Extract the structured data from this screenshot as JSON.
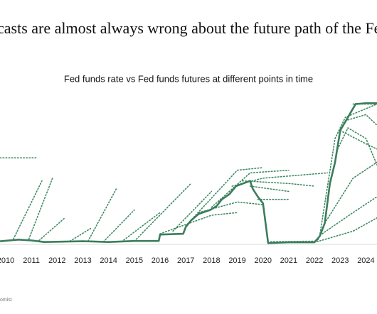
{
  "chart_data": {
    "type": "line",
    "title": "casts are almost always wrong about the future path of the Fed f",
    "subtitle": "Fed funds rate vs Fed funds futures at different points in time",
    "source": "omist",
    "xlim": [
      2009.78,
      2024.43
    ],
    "xticks": [
      2010,
      2011,
      2012,
      2013,
      2014,
      2015,
      2016,
      2017,
      2018,
      2019,
      2020,
      2021,
      2022,
      2023,
      2024
    ],
    "ylim": [
      0,
      5.5
    ],
    "series": [
      {
        "color": "#3b7d5d",
        "line_style": "solid",
        "x": [
          2009.8,
          2010.5,
          2011,
          2011.5,
          2012,
          2013,
          2014,
          2015,
          2015.95,
          2016,
          2016.9,
          2017,
          2017.2,
          2017.5,
          2017.95,
          2018.2,
          2018.4,
          2018.7,
          2018.95,
          2019.5,
          2019.6,
          2019.8,
          2020,
          2020.2,
          2021,
          2022,
          2022.2,
          2022.4,
          2022.6,
          2022.8,
          2023,
          2023.3,
          2023.6,
          2024,
          2024.43
        ],
        "values": [
          0.12,
          0.18,
          0.15,
          0.09,
          0.1,
          0.12,
          0.09,
          0.13,
          0.13,
          0.37,
          0.4,
          0.66,
          0.9,
          1.15,
          1.3,
          1.45,
          1.7,
          1.9,
          2.2,
          2.4,
          2.1,
          1.8,
          1.55,
          0.05,
          0.08,
          0.08,
          0.3,
          0.8,
          2.3,
          3.1,
          4.3,
          4.8,
          5.3,
          5.33,
          5.33
        ]
      },
      {
        "color": "#3f8a62",
        "line_style": "dotted",
        "x": [
          2009.78,
          2011.2
        ],
        "values": [
          3.27,
          3.27
        ]
      },
      {
        "color": "#3f8a62",
        "line_style": "dotted",
        "x": [
          2010.3,
          2011.41
        ],
        "values": [
          0.2,
          2.4
        ]
      },
      {
        "color": "#3f8a62",
        "line_style": "dotted",
        "x": [
          2010.9,
          2011.82
        ],
        "values": [
          0.2,
          2.5
        ]
      },
      {
        "color": "#3f8a62",
        "line_style": "dotted",
        "x": [
          2011.3,
          2012.3
        ],
        "values": [
          0.15,
          1.0
        ]
      },
      {
        "color": "#3f8a62",
        "line_style": "dotted",
        "x": [
          2012.5,
          2013.3
        ],
        "values": [
          0.12,
          0.6
        ]
      },
      {
        "color": "#3f8a62",
        "line_style": "dotted",
        "x": [
          2013.2,
          2014.3
        ],
        "values": [
          0.12,
          2.1
        ]
      },
      {
        "color": "#3f8a62",
        "line_style": "dotted",
        "x": [
          2013.8,
          2015.0
        ],
        "values": [
          0.1,
          1.3
        ]
      },
      {
        "color": "#3f8a62",
        "line_style": "dotted",
        "x": [
          2014.5,
          2016.0
        ],
        "values": [
          0.1,
          1.2
        ]
      },
      {
        "color": "#3f8a62",
        "line_style": "dotted",
        "x": [
          2015.0,
          2017.2
        ],
        "values": [
          0.12,
          2.3
        ]
      },
      {
        "color": "#3f8a62",
        "line_style": "dotted",
        "x": [
          2016.5,
          2018.0
        ],
        "values": [
          0.5,
          2.0
        ]
      },
      {
        "color": "#3f8a62",
        "line_style": "dotted",
        "x": [
          2017.0,
          2019.0,
          2020.0
        ],
        "values": [
          0.7,
          2.8,
          2.9
        ]
      },
      {
        "color": "#3f8a62",
        "line_style": "dotted",
        "x": [
          2018.0,
          2019.5,
          2021.0
        ],
        "values": [
          1.4,
          2.7,
          2.8
        ]
      },
      {
        "color": "#3f8a62",
        "line_style": "dotted",
        "x": [
          2018.8,
          2020.0,
          2022.5
        ],
        "values": [
          2.2,
          2.5,
          2.7
        ]
      },
      {
        "color": "#3f8a62",
        "line_style": "dotted",
        "x": [
          2019.2,
          2021.0,
          2022.0
        ],
        "values": [
          2.4,
          2.3,
          2.2
        ]
      },
      {
        "color": "#3f8a62",
        "line_style": "dotted",
        "x": [
          2019.5,
          2021.0
        ],
        "values": [
          2.2,
          2.0
        ]
      },
      {
        "color": "#3f8a62",
        "line_style": "dotted",
        "x": [
          2019.8,
          2021.0
        ],
        "values": [
          1.7,
          1.7
        ]
      },
      {
        "color": "#3f8a62",
        "line_style": "dotted",
        "x": [
          2017.5,
          2019.0,
          2020.0
        ],
        "values": [
          1.2,
          1.6,
          1.5
        ]
      },
      {
        "color": "#3f8a62",
        "line_style": "dotted",
        "x": [
          2016.0,
          2018.0,
          2019.0
        ],
        "values": [
          0.4,
          1.1,
          1.2
        ]
      },
      {
        "color": "#3f8a62",
        "line_style": "dotted",
        "x": [
          2020.3,
          2022.0,
          2022.2
        ],
        "values": [
          0.1,
          0.12,
          0.2
        ]
      },
      {
        "color": "#3f8a62",
        "line_style": "dotted",
        "x": [
          2022.2,
          2022.8,
          2023.2,
          2024.43
        ],
        "values": [
          0.3,
          4.0,
          4.8,
          5.3
        ]
      },
      {
        "color": "#3f8a62",
        "line_style": "dotted",
        "x": [
          2022.9,
          2023.3,
          2024.0,
          2024.43
        ],
        "values": [
          3.6,
          4.4,
          4.0,
          3.0
        ]
      },
      {
        "color": "#3f8a62",
        "line_style": "dotted",
        "x": [
          2023.0,
          2024.0,
          2024.43
        ],
        "values": [
          4.3,
          3.8,
          3.6
        ]
      },
      {
        "color": "#3f8a62",
        "line_style": "dotted",
        "x": [
          2023.3,
          2024.0,
          2024.43
        ],
        "values": [
          4.7,
          4.9,
          4.5
        ]
      },
      {
        "color": "#3f8a62",
        "line_style": "dotted",
        "x": [
          2022.4,
          2023.5,
          2024.43
        ],
        "values": [
          0.8,
          2.5,
          3.1
        ]
      },
      {
        "color": "#3f8a62",
        "line_style": "dotted",
        "x": [
          2022.3,
          2023.5,
          2024.43
        ],
        "values": [
          0.4,
          1.2,
          1.8
        ]
      },
      {
        "color": "#3f8a62",
        "line_style": "dotted",
        "x": [
          2022.1,
          2023.5,
          2024.43
        ],
        "values": [
          0.1,
          0.5,
          1.0
        ]
      },
      {
        "color": "#3f8a62",
        "line_style": "dotted",
        "x": [
          2023.5,
          2024.43
        ],
        "values": [
          5.3,
          5.3
        ]
      }
    ]
  }
}
